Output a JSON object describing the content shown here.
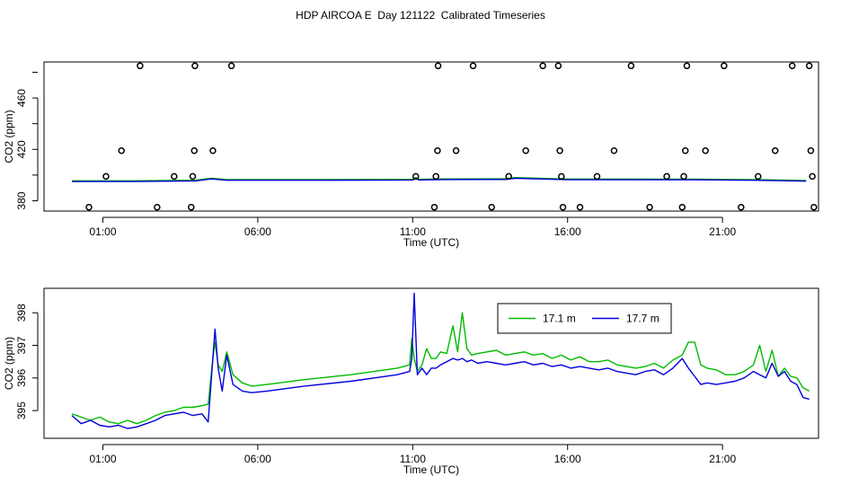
{
  "title": "HDP AIRCOA E  Day 121122  Calibrated Timeseries",
  "chart_data": [
    {
      "type": "scatter",
      "xlabel": "Time (UTC)",
      "ylabel": "CO2 (ppm)",
      "xlim": [
        -0.9,
        24.1
      ],
      "ylim": [
        372,
        488
      ],
      "xticks": [
        1,
        6,
        11,
        16,
        21
      ],
      "xtick_labels": [
        "01:00",
        "06:00",
        "11:00",
        "16:00",
        "21:00"
      ],
      "yticks": [
        380,
        420,
        460
      ],
      "ytick_labels": [
        "380",
        "420",
        "460"
      ],
      "colors": {
        "points": "#000000",
        "line": "#0000dd",
        "line2": "#00bb00"
      },
      "points": [
        {
          "x": 0.55,
          "y": 375
        },
        {
          "x": 1.1,
          "y": 399
        },
        {
          "x": 1.6,
          "y": 419
        },
        {
          "x": 2.2,
          "y": 485
        },
        {
          "x": 2.75,
          "y": 375
        },
        {
          "x": 3.3,
          "y": 399
        },
        {
          "x": 3.85,
          "y": 375
        },
        {
          "x": 3.9,
          "y": 399
        },
        {
          "x": 3.95,
          "y": 419
        },
        {
          "x": 3.97,
          "y": 485
        },
        {
          "x": 4.55,
          "y": 419
        },
        {
          "x": 5.15,
          "y": 485
        },
        {
          "x": 11.1,
          "y": 399
        },
        {
          "x": 11.7,
          "y": 375
        },
        {
          "x": 11.75,
          "y": 399
        },
        {
          "x": 11.8,
          "y": 419
        },
        {
          "x": 11.82,
          "y": 485
        },
        {
          "x": 12.4,
          "y": 419
        },
        {
          "x": 12.95,
          "y": 485
        },
        {
          "x": 13.55,
          "y": 375
        },
        {
          "x": 14.1,
          "y": 399
        },
        {
          "x": 14.65,
          "y": 419
        },
        {
          "x": 15.2,
          "y": 485
        },
        {
          "x": 15.7,
          "y": 485
        },
        {
          "x": 15.75,
          "y": 419
        },
        {
          "x": 15.8,
          "y": 399
        },
        {
          "x": 15.85,
          "y": 375
        },
        {
          "x": 16.4,
          "y": 375
        },
        {
          "x": 16.95,
          "y": 399
        },
        {
          "x": 17.5,
          "y": 419
        },
        {
          "x": 18.05,
          "y": 485
        },
        {
          "x": 18.65,
          "y": 375
        },
        {
          "x": 19.2,
          "y": 399
        },
        {
          "x": 19.7,
          "y": 375
        },
        {
          "x": 19.75,
          "y": 399
        },
        {
          "x": 19.8,
          "y": 419
        },
        {
          "x": 19.85,
          "y": 485
        },
        {
          "x": 20.45,
          "y": 419
        },
        {
          "x": 21.05,
          "y": 485
        },
        {
          "x": 21.6,
          "y": 375
        },
        {
          "x": 22.15,
          "y": 399
        },
        {
          "x": 22.7,
          "y": 419
        },
        {
          "x": 23.25,
          "y": 485
        },
        {
          "x": 23.8,
          "y": 485
        },
        {
          "x": 23.85,
          "y": 419
        },
        {
          "x": 23.9,
          "y": 399
        },
        {
          "x": 23.95,
          "y": 375
        }
      ],
      "line_x": [
        0,
        2,
        4,
        4.5,
        5,
        8,
        11,
        11.1,
        11.2,
        12,
        14,
        14.3,
        16,
        20,
        22,
        23.7
      ],
      "line_y": [
        395,
        395,
        395.5,
        397,
        396,
        396,
        396.2,
        397.5,
        396.2,
        396.5,
        396.6,
        397.5,
        396.4,
        396.3,
        396,
        395.3
      ]
    },
    {
      "type": "line",
      "xlabel": "Time (UTC)",
      "ylabel": "CO2 (ppm)",
      "xlim": [
        -0.9,
        24.1
      ],
      "ylim": [
        394.15,
        398.75
      ],
      "xticks": [
        1,
        6,
        11,
        16,
        21
      ],
      "xtick_labels": [
        "01:00",
        "06:00",
        "11:00",
        "16:00",
        "21:00"
      ],
      "yticks": [
        395,
        396,
        397,
        398
      ],
      "ytick_labels": [
        "395",
        "396",
        "397",
        "398"
      ],
      "legend": {
        "position": "top-right"
      },
      "series": [
        {
          "name": "17.1 m",
          "color": "#00bb00",
          "x": [
            0,
            0.3,
            0.6,
            0.9,
            1.2,
            1.5,
            1.8,
            2.1,
            2.4,
            2.7,
            3.0,
            3.3,
            3.6,
            3.9,
            4.2,
            4.4,
            4.55,
            4.62,
            4.72,
            4.85,
            5.0,
            5.2,
            5.5,
            5.8,
            6.3,
            7.5,
            9.0,
            10.5,
            10.9,
            10.97,
            11.05,
            11.15,
            11.3,
            11.45,
            11.6,
            11.75,
            11.9,
            12.1,
            12.3,
            12.45,
            12.6,
            12.75,
            12.9,
            13.1,
            13.4,
            13.7,
            14.0,
            14.3,
            14.6,
            14.9,
            15.2,
            15.5,
            15.8,
            16.1,
            16.4,
            16.7,
            17.0,
            17.3,
            17.6,
            17.9,
            18.2,
            18.5,
            18.8,
            19.1,
            19.4,
            19.7,
            19.9,
            20.1,
            20.3,
            20.5,
            20.8,
            21.1,
            21.4,
            21.7,
            22.0,
            22.2,
            22.4,
            22.6,
            22.8,
            23.0,
            23.2,
            23.4,
            23.6,
            23.8
          ],
          "y": [
            394.9,
            394.8,
            394.7,
            394.8,
            394.65,
            394.6,
            394.7,
            394.6,
            394.7,
            394.85,
            394.95,
            395.0,
            395.1,
            395.1,
            395.15,
            395.2,
            396.6,
            397.1,
            396.4,
            396.2,
            396.8,
            396.1,
            395.85,
            395.75,
            395.8,
            395.95,
            396.1,
            396.3,
            396.4,
            397.2,
            396.6,
            396.2,
            396.4,
            396.9,
            396.6,
            396.6,
            396.8,
            396.75,
            397.6,
            396.8,
            398.0,
            396.9,
            396.7,
            396.75,
            396.8,
            396.85,
            396.7,
            396.75,
            396.8,
            396.7,
            396.75,
            396.6,
            396.7,
            396.55,
            396.65,
            396.5,
            396.5,
            396.55,
            396.4,
            396.35,
            396.3,
            396.35,
            396.45,
            396.3,
            396.55,
            396.7,
            397.1,
            397.1,
            396.4,
            396.3,
            396.25,
            396.1,
            396.1,
            396.2,
            396.4,
            397.0,
            396.2,
            396.85,
            396.05,
            396.3,
            396.05,
            396.0,
            395.7,
            395.6
          ]
        },
        {
          "name": "17.7 m",
          "color": "#0000dd",
          "x": [
            0,
            0.3,
            0.6,
            0.9,
            1.2,
            1.5,
            1.8,
            2.1,
            2.4,
            2.7,
            3.0,
            3.3,
            3.6,
            3.9,
            4.2,
            4.4,
            4.55,
            4.62,
            4.72,
            4.85,
            5.0,
            5.2,
            5.5,
            5.8,
            6.3,
            7.5,
            9.0,
            10.5,
            10.9,
            10.97,
            11.05,
            11.15,
            11.3,
            11.45,
            11.6,
            11.75,
            11.9,
            12.1,
            12.3,
            12.45,
            12.6,
            12.75,
            12.9,
            13.1,
            13.4,
            13.7,
            14.0,
            14.3,
            14.6,
            14.9,
            15.2,
            15.5,
            15.8,
            16.1,
            16.4,
            16.7,
            17.0,
            17.3,
            17.6,
            17.9,
            18.2,
            18.5,
            18.8,
            19.1,
            19.4,
            19.7,
            19.9,
            20.1,
            20.3,
            20.5,
            20.8,
            21.1,
            21.4,
            21.7,
            22.0,
            22.2,
            22.4,
            22.6,
            22.8,
            23.0,
            23.2,
            23.4,
            23.6,
            23.8
          ],
          "y": [
            394.85,
            394.6,
            394.7,
            394.55,
            394.5,
            394.55,
            394.45,
            394.5,
            394.6,
            394.7,
            394.85,
            394.9,
            394.95,
            394.85,
            394.9,
            394.65,
            396.6,
            397.5,
            396.3,
            395.6,
            396.7,
            395.8,
            395.6,
            395.55,
            395.6,
            395.75,
            395.9,
            396.1,
            396.2,
            396.6,
            398.6,
            396.1,
            396.3,
            396.1,
            396.3,
            396.3,
            396.4,
            396.5,
            396.6,
            396.55,
            396.6,
            396.5,
            396.55,
            396.45,
            396.5,
            396.45,
            396.4,
            396.45,
            396.5,
            396.4,
            396.45,
            396.35,
            396.4,
            396.3,
            396.35,
            396.3,
            396.25,
            396.3,
            396.2,
            396.15,
            396.1,
            396.2,
            396.25,
            396.1,
            396.3,
            396.6,
            396.3,
            396.05,
            395.8,
            395.85,
            395.8,
            395.85,
            395.9,
            396.0,
            396.2,
            396.1,
            396.0,
            396.45,
            396.05,
            396.2,
            395.9,
            395.8,
            395.4,
            395.35
          ]
        }
      ]
    }
  ]
}
